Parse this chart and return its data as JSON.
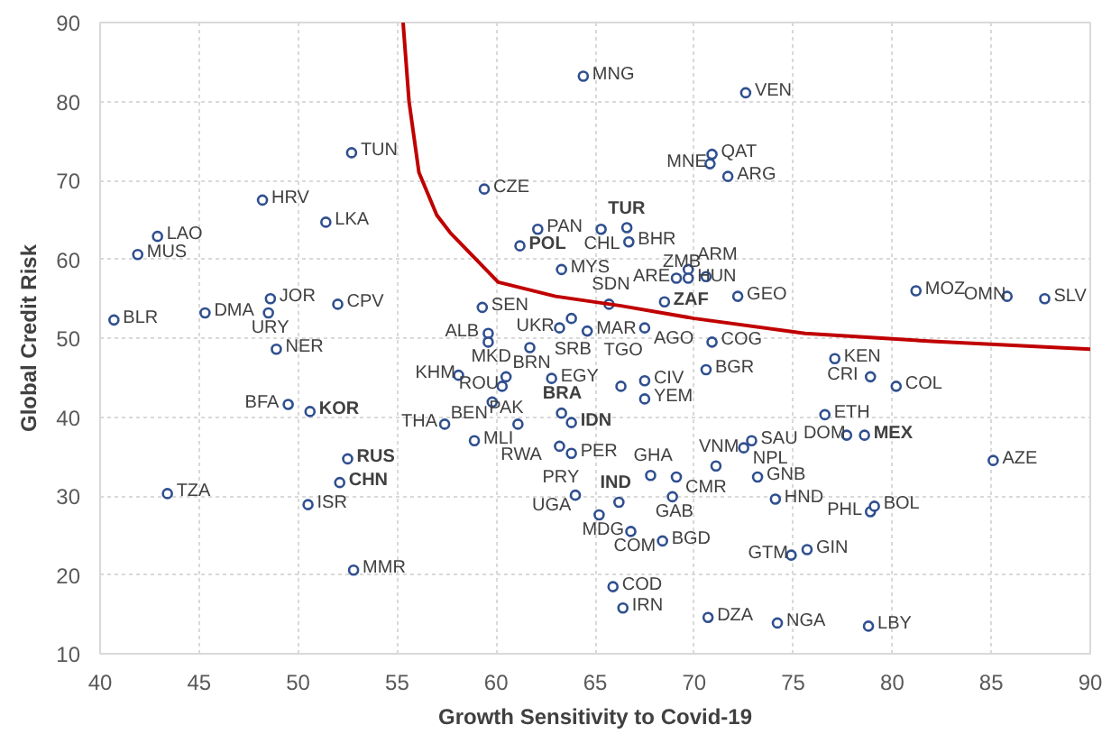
{
  "chart_data": {
    "type": "scatter",
    "xlabel": "Growth Sensitivity to Covid-19",
    "ylabel": "Global Credit Risk",
    "xlim": [
      40,
      90
    ],
    "ylim": [
      10,
      90
    ],
    "xticks": [
      40,
      45,
      50,
      55,
      60,
      65,
      70,
      75,
      80,
      85,
      90
    ],
    "yticks": [
      10,
      20,
      30,
      40,
      50,
      60,
      70,
      80,
      90
    ],
    "grid": true,
    "series": [
      {
        "color": "#2f4f8f",
        "marker": "circle",
        "x": [
          64.4,
          72.6,
          70.9,
          70.8,
          71.7,
          52.7,
          48.2,
          51.4,
          42.9,
          41.9,
          40.7,
          45.3,
          48.6,
          48.5,
          52.0,
          48.9,
          59.4,
          62.1,
          65.3,
          66.7,
          63.3,
          69.1,
          69.7,
          69.7,
          70.6,
          72.2,
          65.7,
          63.8,
          63.2,
          64.6,
          67.5,
          59.6,
          59.6,
          61.7,
          70.9,
          70.6,
          58.1,
          60.3,
          60.5,
          62.8,
          66.3,
          67.5,
          67.5,
          59.8,
          57.4,
          58.9,
          61.1,
          63.2,
          63.8,
          67.8,
          69.1,
          64.0,
          68.9,
          65.2,
          66.8,
          68.4,
          65.9,
          66.4,
          70.7,
          74.2,
          71.1,
          72.9,
          72.5,
          73.2,
          74.1,
          74.9,
          75.7,
          78.9,
          79.1,
          78.8,
          77.1,
          78.9,
          80.2,
          76.6,
          77.7,
          85.1,
          81.2,
          85.8,
          87.7,
          59.3,
          49.5,
          43.4,
          50.5,
          52.8
        ],
        "values": [
          83.2,
          81.1,
          73.3,
          72.1,
          70.5,
          73.5,
          67.5,
          64.7,
          62.9,
          60.6,
          52.3,
          53.2,
          55.0,
          53.2,
          54.3,
          48.6,
          68.9,
          63.8,
          63.8,
          62.2,
          58.7,
          57.6,
          58.7,
          57.6,
          57.8,
          55.3,
          54.3,
          52.5,
          51.3,
          50.9,
          51.3,
          50.6,
          49.5,
          48.8,
          49.5,
          46.0,
          45.3,
          43.9,
          45.1,
          44.9,
          43.9,
          44.6,
          42.3,
          41.9,
          39.1,
          37.0,
          39.1,
          36.3,
          35.4,
          32.6,
          32.4,
          30.1,
          29.9,
          27.6,
          25.5,
          24.3,
          18.5,
          15.8,
          14.6,
          13.9,
          33.8,
          37.0,
          36.1,
          32.4,
          29.6,
          22.5,
          23.2,
          28.0,
          28.7,
          13.5,
          47.4,
          45.1,
          43.9,
          40.3,
          37.7,
          34.5,
          56.0,
          55.3,
          55.0,
          53.9,
          41.6,
          30.3,
          28.9,
          20.6
        ],
        "value_labels": [
          "MNG",
          "VEN",
          "QAT",
          "MNE",
          "ARG",
          "TUN",
          "HRV",
          "LKA",
          "LAO",
          "MUS",
          "BLR",
          "DMA",
          "JOR",
          "URY",
          "CPV",
          "NER",
          "CZE",
          "PAN",
          "CHL",
          "BHR",
          "MYS",
          "ARE",
          "ARM",
          "HUN",
          "ZMB",
          "GEO",
          "SDN",
          "SRB",
          "UKR",
          "MAR",
          "AGO",
          "ALB",
          "MKD",
          "BRN",
          "COG",
          "BGR",
          "KHM",
          "ROU",
          "PAK",
          "EGY",
          "TGO",
          "CIV",
          "YEM",
          "BEN",
          "THA",
          "MLI",
          "RWA",
          "PRY",
          "PER",
          "GHA",
          "CMR",
          "UGA",
          "GAB",
          "MDG",
          "COM",
          "BGD",
          "COD",
          "IRN",
          "DZA",
          "NGA",
          "VNM",
          "SAU",
          "NPL",
          "GNB",
          "HND",
          "GTM",
          "GIN",
          "PHL",
          "BOL",
          "LBY",
          "KEN",
          "CRI",
          "COL",
          "ETH",
          "DOM",
          "AZE",
          "MOZ",
          "OMN",
          "SLV",
          "SEN",
          "BFA",
          "TZA",
          "ISR",
          "MMR"
        ]
      },
      {
        "color": "#2f4f8f",
        "marker": "circle",
        "x": [
          66.6,
          61.2,
          68.5,
          63.3,
          63.8,
          66.2,
          50.6,
          52.5,
          52.1,
          78.6
        ],
        "values": [
          64.0,
          61.7,
          54.6,
          40.5,
          39.3,
          29.2,
          40.7,
          34.7,
          31.7,
          37.7
        ],
        "value_labels": [
          "TUR",
          "POL",
          "ZAF",
          "BRA",
          "IDN",
          "IND",
          "KOR",
          "RUS",
          "CHN",
          "MEX"
        ]
      },
      {
        "type": "line",
        "color": "#c00000",
        "x": [
          55.3,
          55.6,
          56.1,
          57.0,
          57.7,
          60.1,
          63.0,
          66.3,
          70.0,
          75.6,
          82.0,
          90.0
        ],
        "values": [
          90,
          80,
          71,
          65.6,
          63.3,
          57.1,
          55.3,
          54.1,
          52.5,
          50.6,
          49.6,
          48.6
        ]
      }
    ]
  }
}
